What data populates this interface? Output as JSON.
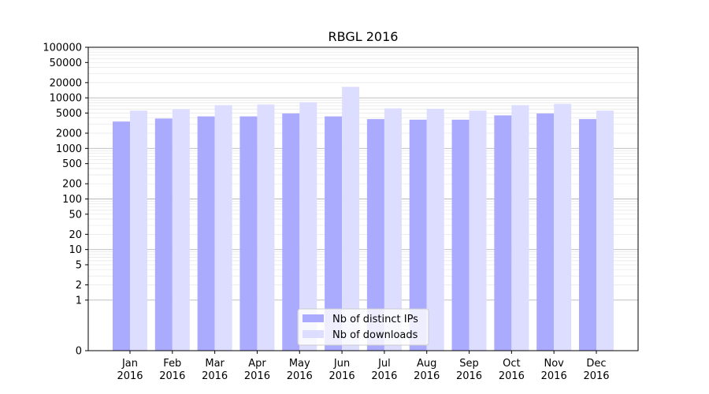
{
  "chart_data": {
    "type": "bar",
    "title": "RBGL 2016",
    "xlabel": "",
    "ylabel": "",
    "categories": [
      "Jan\n2016",
      "Feb\n2016",
      "Mar\n2016",
      "Apr\n2016",
      "May\n2016",
      "Jun\n2016",
      "Jul\n2016",
      "Aug\n2016",
      "Sep\n2016",
      "Oct\n2016",
      "Nov\n2016",
      "Dec\n2016"
    ],
    "series": [
      {
        "name": "Nb of distinct IPs",
        "color": "#aaaaff",
        "values": [
          3400,
          3900,
          4300,
          4300,
          4900,
          4300,
          3800,
          3700,
          3700,
          4500,
          4900,
          3800
        ]
      },
      {
        "name": "Nb of downloads",
        "color": "#ddddff",
        "values": [
          5600,
          5900,
          7200,
          7400,
          8200,
          16500,
          6200,
          6100,
          5600,
          7200,
          7600,
          5600
        ]
      }
    ],
    "y_scale": "symlog",
    "y_ticks": [
      0,
      1,
      2,
      5,
      10,
      20,
      50,
      100,
      200,
      500,
      1000,
      2000,
      5000,
      10000,
      20000,
      50000,
      100000
    ],
    "y_tick_labels": [
      "0",
      "1",
      "2",
      "5",
      "10",
      "20",
      "50",
      "100",
      "200",
      "500",
      "1000",
      "2000",
      "5000",
      "10000",
      "20000",
      "50000",
      "100000"
    ],
    "ylim": [
      0,
      100000
    ],
    "grid": true,
    "legend_placement": "lower-center"
  }
}
